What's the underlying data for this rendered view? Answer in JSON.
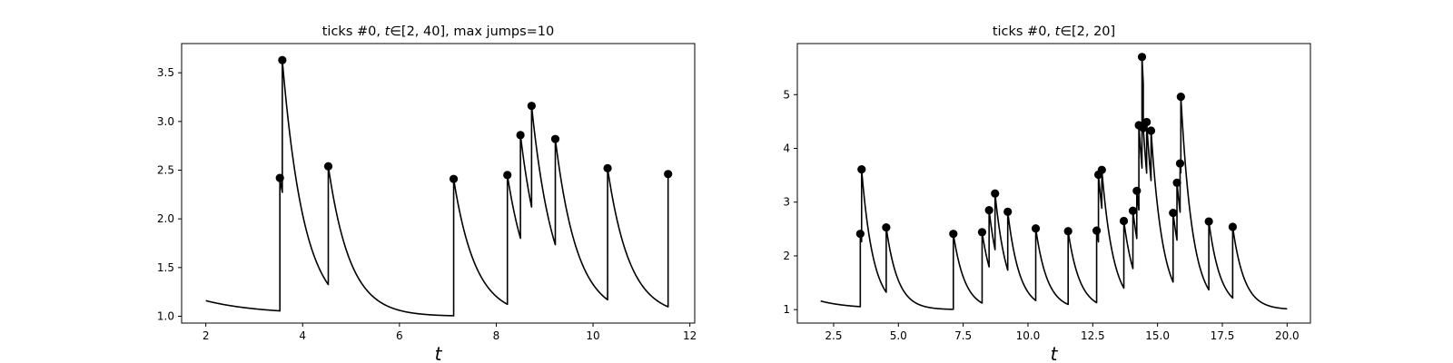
{
  "chart_data": [
    {
      "type": "line",
      "title": "ticks #0, t∈[2, 40], max jumps=10",
      "title_parts": {
        "prefix": "ticks #0, ",
        "var": "t",
        "mid": "∈[2, 40], max jumps=10"
      },
      "xlabel": "t",
      "ylabel": "",
      "xlim": [
        1.5,
        12.1
      ],
      "ylim": [
        0.93,
        3.8
      ],
      "xticks": [
        2,
        4,
        6,
        8,
        10,
        12
      ],
      "xtick_labels": [
        "2",
        "4",
        "6",
        "8",
        "10",
        "12"
      ],
      "yticks": [
        1.0,
        1.5,
        2.0,
        2.5,
        3.0,
        3.5
      ],
      "ytick_labels": [
        "1.0",
        "1.5",
        "2.0",
        "2.5",
        "3.0",
        "3.5"
      ],
      "grid": false,
      "line_color": "#000000",
      "t_start": 2.0,
      "t_end": 11.55,
      "base": 1.0,
      "baseline_at_start": 1.16,
      "jumps": [
        {
          "t": 3.53,
          "y": 2.42
        },
        {
          "t": 3.58,
          "y": 3.63
        },
        {
          "t": 4.53,
          "y": 2.54
        },
        {
          "t": 7.12,
          "y": 2.41
        },
        {
          "t": 8.23,
          "y": 2.45
        },
        {
          "t": 8.5,
          "y": 2.86
        },
        {
          "t": 8.73,
          "y": 3.16
        },
        {
          "t": 9.22,
          "y": 2.82
        },
        {
          "t": 10.3,
          "y": 2.52
        },
        {
          "t": 11.55,
          "y": 2.46
        }
      ]
    },
    {
      "type": "line",
      "title": "ticks #0, t∈[2, 20]",
      "title_parts": {
        "prefix": "ticks #0, ",
        "var": "t",
        "mid": "∈[2, 20]"
      },
      "xlabel": "t",
      "ylabel": "",
      "xlim": [
        1.1,
        20.9
      ],
      "ylim": [
        0.75,
        5.95
      ],
      "xticks": [
        2.5,
        5.0,
        7.5,
        10.0,
        12.5,
        15.0,
        17.5,
        20.0
      ],
      "xtick_labels": [
        "2.5",
        "5.0",
        "7.5",
        "10.0",
        "12.5",
        "15.0",
        "17.5",
        "20.0"
      ],
      "yticks": [
        1,
        2,
        3,
        4,
        5
      ],
      "ytick_labels": [
        "1",
        "2",
        "3",
        "4",
        "5"
      ],
      "grid": false,
      "line_color": "#000000",
      "t_start": 2.0,
      "t_end": 20.0,
      "base": 1.0,
      "baseline_at_start": 1.16,
      "jumps": [
        {
          "t": 3.53,
          "y": 2.41
        },
        {
          "t": 3.58,
          "y": 3.61
        },
        {
          "t": 4.53,
          "y": 2.53
        },
        {
          "t": 7.12,
          "y": 2.41
        },
        {
          "t": 8.23,
          "y": 2.44
        },
        {
          "t": 8.5,
          "y": 2.85
        },
        {
          "t": 8.73,
          "y": 3.16
        },
        {
          "t": 9.22,
          "y": 2.82
        },
        {
          "t": 10.3,
          "y": 2.51
        },
        {
          "t": 11.55,
          "y": 2.46
        },
        {
          "t": 12.65,
          "y": 2.47
        },
        {
          "t": 12.72,
          "y": 3.51
        },
        {
          "t": 12.85,
          "y": 3.6
        },
        {
          "t": 13.7,
          "y": 2.65
        },
        {
          "t": 14.05,
          "y": 2.84
        },
        {
          "t": 14.2,
          "y": 3.21
        },
        {
          "t": 14.28,
          "y": 4.43
        },
        {
          "t": 14.4,
          "y": 5.7
        },
        {
          "t": 14.45,
          "y": 4.38
        },
        {
          "t": 14.58,
          "y": 4.49
        },
        {
          "t": 14.75,
          "y": 4.33
        },
        {
          "t": 15.6,
          "y": 2.8
        },
        {
          "t": 15.75,
          "y": 3.36
        },
        {
          "t": 15.87,
          "y": 3.72
        },
        {
          "t": 15.9,
          "y": 4.96
        },
        {
          "t": 16.98,
          "y": 2.64
        },
        {
          "t": 17.9,
          "y": 2.54
        }
      ]
    }
  ]
}
